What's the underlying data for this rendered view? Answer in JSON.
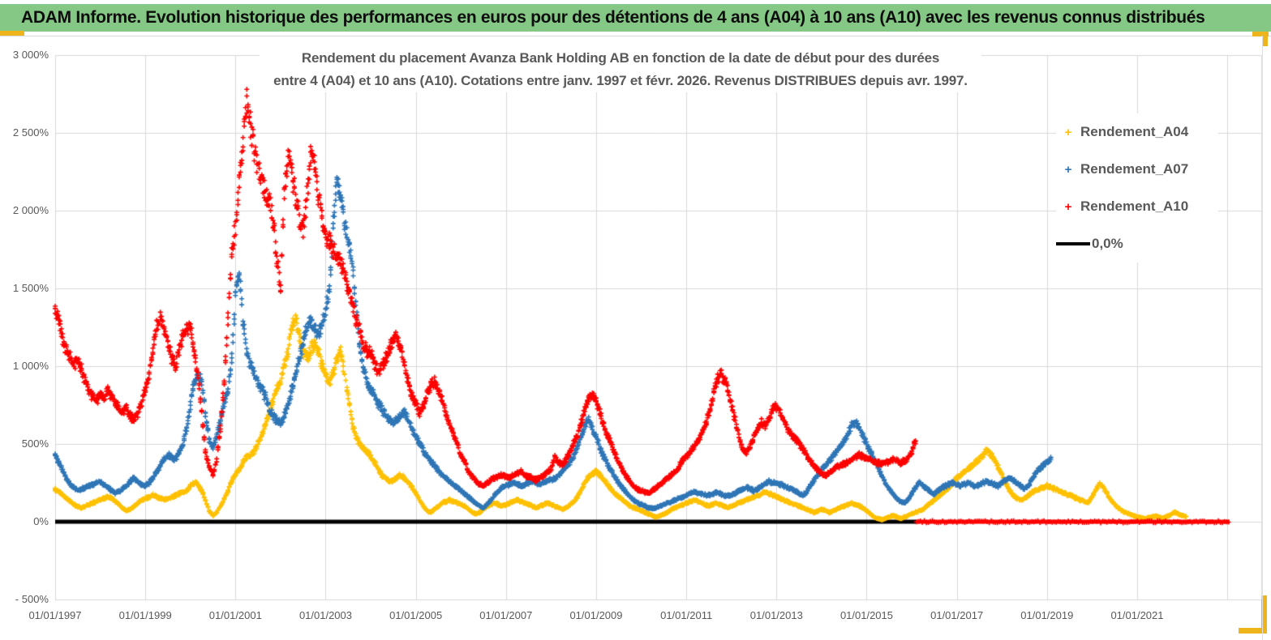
{
  "header": {
    "title": "ADAM Informe. Evolution historique des performances en euros pour des détentions de 4 ans (A04) à 10 ans (A10) avec les revenus connus distribués"
  },
  "chart_data": {
    "type": "scatter",
    "title_lines": [
      "Rendement du placement Avanza Bank Holding AB en fonction de la date de début pour des durées",
      "entre 4 (A04) et 10 ans (A10). Cotations entre janv. 1997 et févr. 2026. Revenus DISTRIBUES depuis avr. 1997."
    ],
    "x_axis": {
      "range_years": [
        1997.0,
        2023.75
      ],
      "gridline_step_years": 2,
      "tick_years": [
        1997,
        1999,
        2001,
        2003,
        2005,
        2007,
        2009,
        2011,
        2013,
        2015,
        2017,
        2019,
        2021
      ],
      "tick_labels": [
        "01/01/1997",
        "01/01/1999",
        "01/01/2001",
        "01/01/2003",
        "01/01/2005",
        "01/01/2007",
        "01/01/2009",
        "01/01/2011",
        "01/01/2013",
        "01/01/2015",
        "01/01/2017",
        "01/01/2019",
        "01/01/2021"
      ]
    },
    "y_axis": {
      "range": [
        -500,
        3000
      ],
      "gridline_step": 500,
      "tick_values": [
        3000,
        2500,
        2000,
        1500,
        1000,
        500,
        0,
        -500
      ],
      "tick_labels": [
        "3 000%",
        "2 500%",
        "2 000%",
        "1 500%",
        "1 000%",
        "500%",
        "0%",
        "- 500%"
      ]
    },
    "grid_color": "#D9D9D9",
    "series": [
      {
        "name": "Rendement_A04",
        "color": "#FFC000",
        "start": "1997-01",
        "freq": "monthly",
        "unit": "percent",
        "values": [
          210,
          190,
          170,
          150,
          130,
          110,
          100,
          90,
          100,
          110,
          120,
          130,
          140,
          150,
          160,
          150,
          130,
          110,
          90,
          70,
          80,
          100,
          120,
          140,
          150,
          160,
          170,
          160,
          150,
          140,
          150,
          160,
          170,
          180,
          190,
          200,
          230,
          250,
          240,
          200,
          140,
          70,
          40,
          60,
          100,
          150,
          200,
          260,
          300,
          340,
          380,
          420,
          430,
          450,
          500,
          560,
          630,
          700,
          780,
          860,
          900,
          1000,
          1100,
          1250,
          1300,
          1200,
          1100,
          1050,
          1100,
          1150,
          1100,
          1000,
          950,
          900,
          950,
          1050,
          1100,
          950,
          800,
          650,
          550,
          500,
          480,
          450,
          420,
          380,
          340,
          300,
          280,
          260,
          270,
          290,
          300,
          280,
          250,
          220,
          180,
          140,
          100,
          70,
          60,
          80,
          100,
          120,
          130,
          140,
          130,
          120,
          110,
          100,
          80,
          60,
          50,
          60,
          80,
          100,
          110,
          120,
          110,
          100,
          110,
          120,
          130,
          140,
          130,
          120,
          110,
          100,
          90,
          100,
          110,
          120,
          110,
          100,
          90,
          80,
          90,
          110,
          130,
          160,
          200,
          250,
          290,
          310,
          320,
          300,
          270,
          240,
          210,
          180,
          160,
          140,
          120,
          100,
          90,
          80,
          70,
          60,
          50,
          40,
          30,
          40,
          50,
          60,
          80,
          90,
          100,
          110,
          120,
          130,
          140,
          130,
          120,
          110,
          100,
          110,
          120,
          110,
          100,
          90,
          100,
          110,
          120,
          130,
          140,
          150,
          160,
          170,
          180,
          190,
          180,
          170,
          160,
          150,
          140,
          130,
          120,
          110,
          100,
          90,
          80,
          70,
          60,
          70,
          80,
          70,
          60,
          70,
          80,
          90,
          100,
          110,
          120,
          110,
          100,
          90,
          70,
          50,
          30,
          20,
          15,
          20,
          30,
          40,
          30,
          20,
          30,
          40,
          50,
          60,
          70,
          80,
          100,
          120,
          140,
          160,
          180,
          200,
          220,
          250,
          280,
          300,
          320,
          340,
          360,
          380,
          400,
          430,
          460,
          440,
          400,
          350,
          300,
          250,
          200,
          170,
          150,
          140,
          150,
          170,
          190,
          200,
          210,
          220,
          230,
          220,
          210,
          200,
          190,
          180,
          170,
          160,
          150,
          140,
          130,
          120,
          160,
          200,
          250,
          220,
          180,
          140,
          110,
          90,
          70,
          60,
          50,
          40,
          30,
          25,
          20,
          25,
          30,
          35,
          30,
          25,
          35,
          45,
          60,
          50,
          40,
          35
        ]
      },
      {
        "name": "Rendement_A07",
        "color": "#2E75B6",
        "start": "1997-01",
        "freq": "monthly",
        "unit": "percent",
        "values": [
          420,
          380,
          330,
          280,
          240,
          220,
          200,
          210,
          220,
          230,
          240,
          250,
          260,
          240,
          220,
          200,
          185,
          195,
          210,
          230,
          260,
          280,
          260,
          240,
          230,
          250,
          280,
          320,
          360,
          400,
          430,
          420,
          400,
          440,
          500,
          600,
          750,
          900,
          950,
          900,
          700,
          520,
          480,
          550,
          650,
          750,
          850,
          1050,
          1450,
          1600,
          1300,
          1100,
          1000,
          950,
          900,
          850,
          800,
          720,
          680,
          650,
          640,
          680,
          750,
          850,
          950,
          1050,
          1150,
          1250,
          1300,
          1250,
          1200,
          1280,
          1350,
          1500,
          1900,
          2200,
          2100,
          1900,
          1800,
          1700,
          1400,
          1150,
          1000,
          900,
          850,
          800,
          760,
          720,
          680,
          660,
          640,
          660,
          680,
          700,
          650,
          600,
          550,
          500,
          460,
          420,
          390,
          360,
          330,
          300,
          280,
          260,
          240,
          220,
          200,
          180,
          160,
          140,
          120,
          100,
          90,
          110,
          140,
          170,
          200,
          220,
          230,
          240,
          250,
          240,
          230,
          240,
          250,
          260,
          250,
          240,
          250,
          260,
          270,
          280,
          300,
          320,
          350,
          380,
          420,
          480,
          550,
          620,
          660,
          600,
          550,
          480,
          420,
          370,
          330,
          290,
          250,
          220,
          190,
          160,
          140,
          120,
          110,
          100,
          90,
          85,
          90,
          100,
          110,
          120,
          130,
          140,
          150,
          160,
          170,
          180,
          190,
          185,
          180,
          175,
          170,
          180,
          190,
          180,
          170,
          165,
          170,
          180,
          200,
          210,
          220,
          210,
          200,
          210,
          230,
          250,
          260,
          250,
          250,
          240,
          230,
          220,
          210,
          200,
          180,
          170,
          190,
          230,
          270,
          300,
          330,
          360,
          390,
          420,
          450,
          480,
          520,
          560,
          620,
          650,
          600,
          550,
          500,
          450,
          400,
          350,
          300,
          250,
          210,
          180,
          150,
          130,
          120,
          140,
          180,
          220,
          250,
          230,
          210,
          190,
          180,
          200,
          220,
          230,
          240,
          250,
          240,
          230,
          240,
          250,
          240,
          230,
          240,
          250,
          260,
          250,
          240,
          230,
          250,
          270,
          280,
          270,
          250,
          230,
          215,
          230,
          270,
          310,
          340,
          360,
          380,
          410
        ]
      },
      {
        "name": "Rendement_A10",
        "color": "#FF0000",
        "start": "1997-01",
        "freq": "monthly",
        "unit": "percent",
        "values": [
          1340,
          1290,
          1170,
          1100,
          1060,
          1010,
          1050,
          980,
          900,
          840,
          800,
          780,
          820,
          780,
          850,
          800,
          760,
          730,
          700,
          730,
          680,
          650,
          700,
          760,
          850,
          950,
          1100,
          1250,
          1300,
          1250,
          1150,
          1050,
          1000,
          1100,
          1200,
          1250,
          1250,
          1100,
          950,
          700,
          450,
          350,
          300,
          400,
          600,
          900,
          1300,
          1700,
          1900,
          2200,
          2450,
          2700,
          2550,
          2400,
          2300,
          2200,
          2100,
          2050,
          1950,
          1700,
          1500,
          2100,
          2350,
          2250,
          2100,
          1950,
          1900,
          2100,
          2350,
          2300,
          2100,
          1950,
          1850,
          1800,
          1750,
          1700,
          1650,
          1600,
          1500,
          1400,
          1300,
          1250,
          1150,
          1100,
          1080,
          1020,
          960,
          1000,
          1050,
          1100,
          1180,
          1200,
          1100,
          1000,
          900,
          800,
          750,
          700,
          750,
          820,
          880,
          900,
          850,
          780,
          700,
          620,
          560,
          500,
          430,
          380,
          330,
          290,
          260,
          240,
          230,
          250,
          270,
          280,
          290,
          300,
          290,
          280,
          300,
          310,
          320,
          300,
          290,
          280,
          270,
          280,
          300,
          320,
          340,
          420,
          380,
          360,
          400,
          450,
          500,
          560,
          640,
          720,
          800,
          820,
          780,
          700,
          620,
          560,
          500,
          440,
          380,
          330,
          290,
          260,
          230,
          210,
          200,
          190,
          185,
          200,
          220,
          240,
          260,
          280,
          300,
          320,
          350,
          400,
          420,
          450,
          480,
          520,
          560,
          620,
          700,
          800,
          900,
          950,
          920,
          850,
          750,
          650,
          550,
          470,
          440,
          480,
          550,
          600,
          640,
          610,
          660,
          730,
          740,
          700,
          650,
          600,
          560,
          530,
          500,
          470,
          430,
          390,
          360,
          330,
          310,
          300,
          310,
          330,
          350,
          360,
          370,
          380,
          400,
          420,
          430,
          420,
          410,
          400,
          390,
          380,
          370,
          380,
          390,
          400,
          390,
          380,
          390,
          410,
          450,
          520
        ],
        "zero_segment": {
          "value": 0,
          "from_year": 2016.1,
          "to_year": 2023.05
        }
      }
    ],
    "zero_line": {
      "label": "0,0%",
      "value": 0,
      "from_year": 1997.0,
      "to_year": 2016.1,
      "color": "#000000"
    },
    "legend": [
      {
        "label": "Rendement_A04",
        "color": "#FFC000",
        "marker": "plus"
      },
      {
        "label": "Rendement_A07",
        "color": "#2E75B6",
        "marker": "plus"
      },
      {
        "label": "Rendement_A10",
        "color": "#FF0000",
        "marker": "plus"
      },
      {
        "label": "0,0%",
        "color": "#000000",
        "marker": "line"
      }
    ]
  }
}
